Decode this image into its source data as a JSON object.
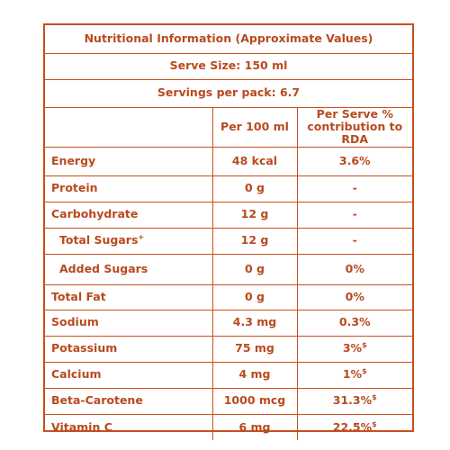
{
  "panel": {
    "title": "Nutritional Information (Approximate Values)",
    "serve_size": "Serve Size: 150 ml",
    "servings": "Servings per pack: 6.7"
  },
  "columns": {
    "per_100": "Per 100 ml",
    "per_serve_line1": "Per Serve %",
    "per_serve_line2": "contribution to RDA"
  },
  "rows": [
    {
      "name": "Energy",
      "per_100": "48 kcal",
      "rda": "3.6%",
      "rda_mark": ""
    },
    {
      "name": "Protein",
      "per_100": "0 g",
      "rda": "-",
      "rda_mark": ""
    },
    {
      "name": "Carbohydrate",
      "per_100": "12 g",
      "rda": "-",
      "rda_mark": ""
    },
    {
      "name": "Total Sugars",
      "name_mark": "+",
      "per_100": "12 g",
      "rda": "-",
      "rda_mark": ""
    },
    {
      "name": "Added Sugars",
      "per_100": "0 g",
      "rda": "0%",
      "rda_mark": ""
    },
    {
      "name": "Total Fat",
      "per_100": "0 g",
      "rda": "0%",
      "rda_mark": ""
    },
    {
      "name": "Sodium",
      "per_100": "4.3 mg",
      "rda": "0.3%",
      "rda_mark": ""
    },
    {
      "name": "Potassium",
      "per_100": "75 mg",
      "rda": "3%",
      "rda_mark": "$"
    },
    {
      "name": "Calcium",
      "per_100": "4 mg",
      "rda": "1%",
      "rda_mark": "$"
    },
    {
      "name": "Beta-Carotene",
      "per_100": "1000 mcg",
      "rda": "31.3%",
      "rda_mark": "$"
    },
    {
      "name": "Vitamin C",
      "per_100": "6 mg",
      "rda": "22.5%",
      "rda_mark": "$"
    }
  ],
  "colors": {
    "ink": "#b84a1f",
    "rule": "#c8501e",
    "background": "#ffffff"
  }
}
